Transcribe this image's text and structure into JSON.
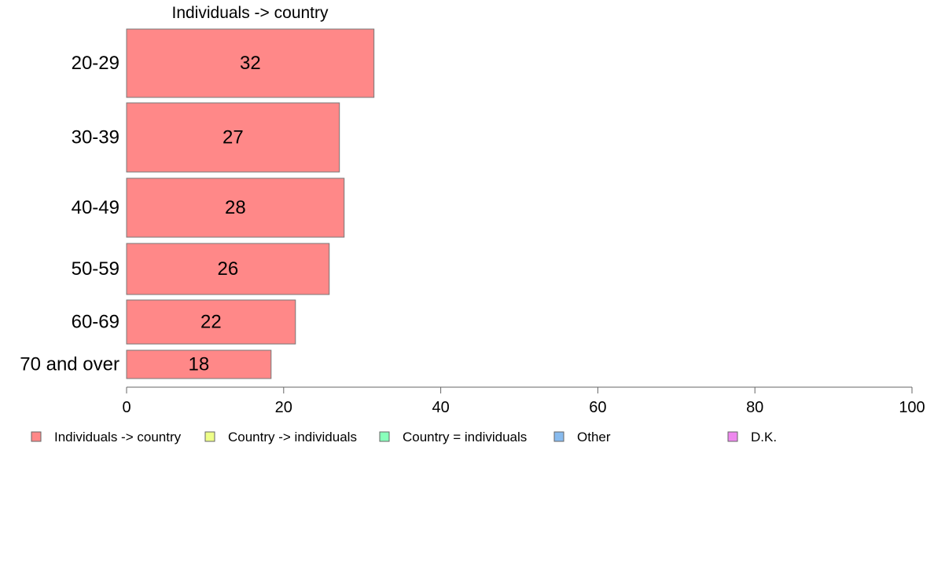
{
  "chart_data": {
    "type": "bar",
    "orientation": "horizontal",
    "title": "Individuals -> country",
    "xlabel": "",
    "ylabel": "",
    "xlim": [
      0,
      100
    ],
    "x_ticks": [
      "0",
      "20",
      "40",
      "60",
      "80",
      "100"
    ],
    "categories": [
      "20-29",
      "30-39",
      "40-49",
      "50-59",
      "60-69",
      "70 and over"
    ],
    "series": [
      {
        "name": "Individuals -> country",
        "color": "#ff8888",
        "values": [
          31.5,
          27.1,
          27.7,
          25.8,
          21.5,
          18.4
        ],
        "labels": [
          "32",
          "27",
          "28",
          "26",
          "22",
          "18"
        ]
      }
    ],
    "legend": {
      "position": "bottom",
      "items": [
        {
          "label": "Individuals -> country",
          "color": "#ff8888"
        },
        {
          "label": "Country -> individuals",
          "color": "#eeff88"
        },
        {
          "label": "Country = individuals",
          "color": "#88ffbb"
        },
        {
          "label": "Other",
          "color": "#88bbee"
        },
        {
          "label": "D.K.",
          "color": "#ee88ee"
        }
      ]
    }
  }
}
